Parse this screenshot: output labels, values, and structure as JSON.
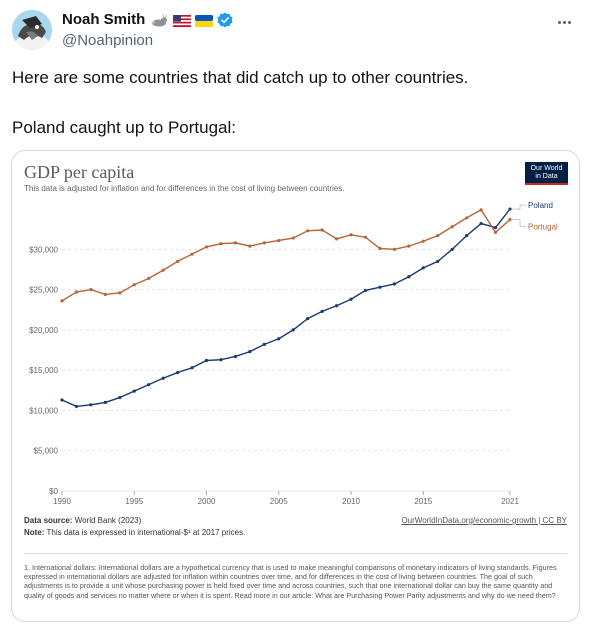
{
  "author": {
    "name": "Noah Smith",
    "handle": "@Noahpinion",
    "badges": [
      "rabbit-emoji",
      "us-flag-emoji",
      "ukraine-flag-emoji",
      "verified-badge"
    ]
  },
  "tweet": {
    "line1": "Here are some countries that did catch up to other countries.",
    "line2": "Poland caught up to Portugal:"
  },
  "chart_card": {
    "title": "GDP per capita",
    "subtitle": "This data is adjusted for inflation and for differences in the cost of living between countries.",
    "logo_line1": "Our World",
    "logo_line2": "in Data",
    "source_label": "Data source:",
    "source_text": "World Bank (2023)",
    "note_label": "Note:",
    "note_text": "This data is expressed in international-$¹ at 2017 prices.",
    "link_text": "OurWorldInData.org/economic-growth | CC BY",
    "footnote": "1. International dollars: International dollars are a hypothetical currency that is used to make meaningful comparisons of monetary indicators of living standards. Figures expressed in international dollars are adjusted for inflation within countries over time, and for differences in the cost of living between countries. The goal of such adjustments is to provide a unit whose purchasing power is held fixed over time and across countries, such that one international dollar can buy the same quantity and quality of goods and services no matter where or when it is spent. Read more in our article: What are Purchasing Power Parity adjustments and why do we need them?"
  },
  "colors": {
    "poland": "#1b3a6b",
    "portugal": "#b5653a",
    "grid": "#dddddd",
    "axis_text": "#666666"
  },
  "chart_data": {
    "type": "line",
    "title": "GDP per capita",
    "x": [
      1990,
      1991,
      1992,
      1993,
      1994,
      1995,
      1996,
      1997,
      1998,
      1999,
      2000,
      2001,
      2002,
      2003,
      2004,
      2005,
      2006,
      2007,
      2008,
      2009,
      2010,
      2011,
      2012,
      2013,
      2014,
      2015,
      2016,
      2017,
      2018,
      2019,
      2020,
      2021
    ],
    "ylim": [
      0,
      36000
    ],
    "yticks": [
      0,
      5000,
      10000,
      15000,
      20000,
      25000,
      30000
    ],
    "ytick_labels": [
      "$0",
      "$5,000",
      "$10,000",
      "$15,000",
      "$20,000",
      "$25,000",
      "$30,000"
    ],
    "xticks": [
      1990,
      1995,
      2000,
      2005,
      2010,
      2015,
      2021
    ],
    "xtick_labels": [
      "1990",
      "1995",
      "2000",
      "2005",
      "2010",
      "2015",
      "2021"
    ],
    "grid": "horizontal dashed",
    "legend": "labels at right end of lines",
    "series": [
      {
        "name": "Poland",
        "values": [
          11300,
          10500,
          10700,
          11000,
          11600,
          12400,
          13200,
          14000,
          14700,
          15300,
          16200,
          16300,
          16700,
          17300,
          18200,
          18900,
          20000,
          21400,
          22300,
          23000,
          23800,
          24900,
          25300,
          25700,
          26600,
          27700,
          28500,
          30000,
          31700,
          33200,
          32700,
          35000
        ]
      },
      {
        "name": "Portugal",
        "values": [
          23600,
          24700,
          25000,
          24400,
          24600,
          25600,
          26400,
          27400,
          28500,
          29400,
          30300,
          30700,
          30800,
          30400,
          30800,
          31100,
          31400,
          32300,
          32400,
          31300,
          31800,
          31500,
          30100,
          30000,
          30400,
          31000,
          31700,
          32800,
          33900,
          34900,
          32100,
          33700
        ]
      }
    ]
  }
}
